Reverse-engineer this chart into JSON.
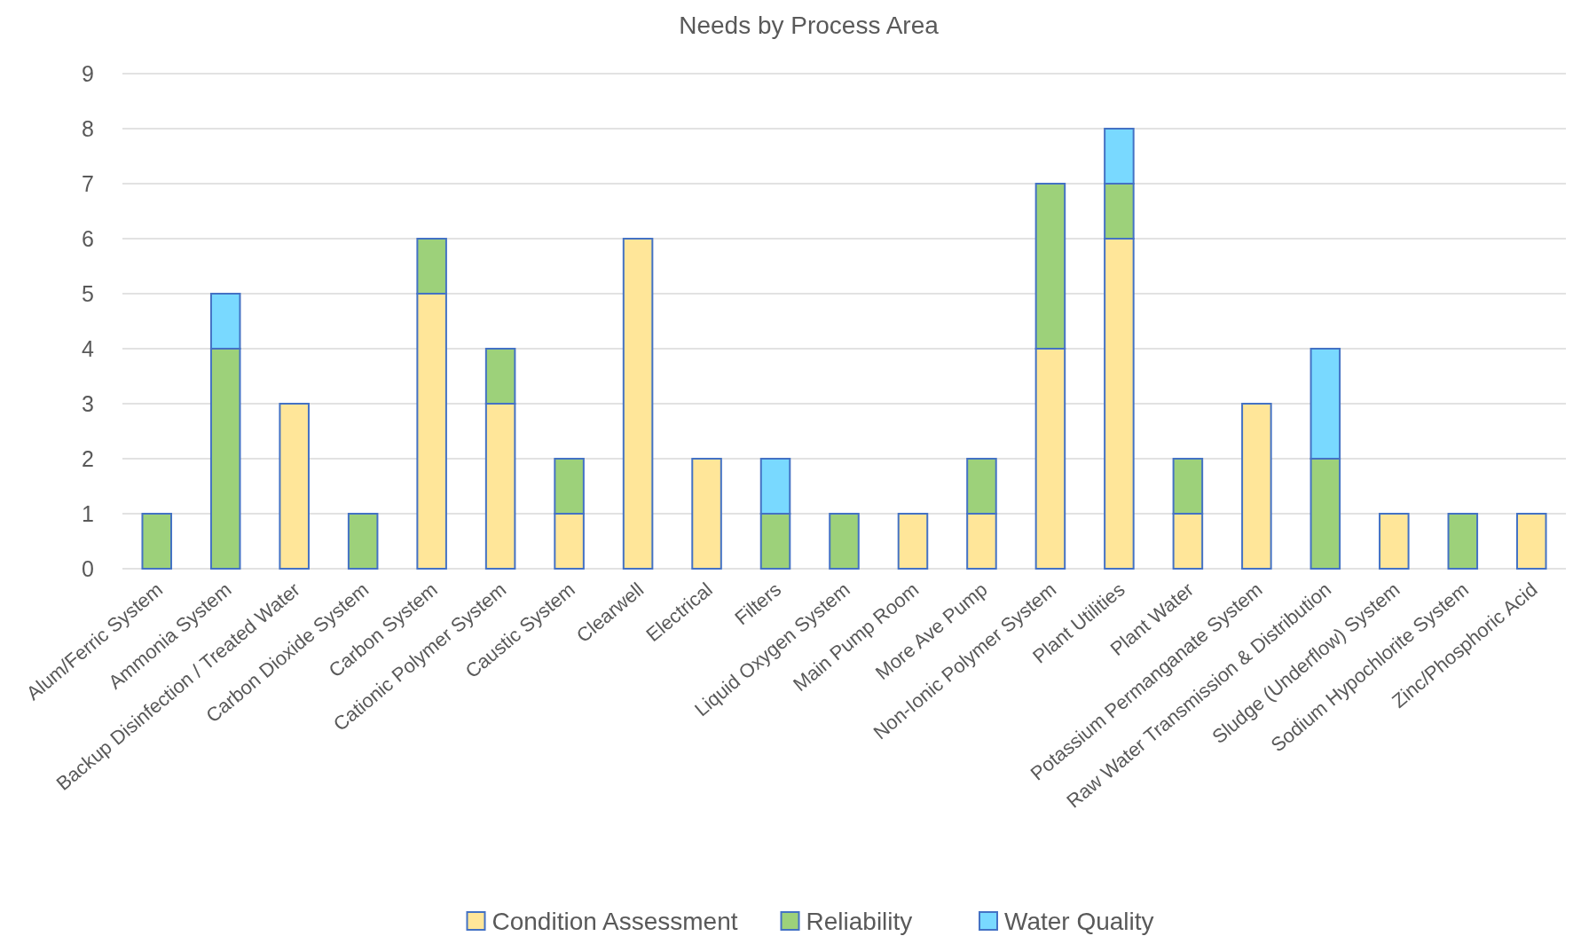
{
  "chart_data": {
    "type": "bar",
    "title": "Needs by Process Area",
    "stacked": true,
    "categories": [
      "Alum/Ferric System",
      "Ammonia System",
      "Backup Disinfection / Treated Water",
      "Carbon Dioxide System",
      "Carbon System",
      "Cationic Polymer System",
      "Caustic System",
      "Clearwell",
      "Electrical",
      "Filters",
      "Liquid Oxygen System",
      "Main Pump Room",
      "More Ave Pump",
      "Non-Ionic Polymer System",
      "Plant Utilities",
      "Plant Water",
      "Potassium Permanganate System",
      "Raw Water Transmission & Distribution",
      "Sludge (Underflow) System",
      "Sodium Hypochlorite System",
      "Zinc/Phosphoric Acid"
    ],
    "series": [
      {
        "name": "Condition Assessment",
        "color": "#ffe699",
        "values": [
          0,
          0,
          3,
          0,
          5,
          3,
          1,
          6,
          2,
          0,
          0,
          1,
          1,
          4,
          6,
          1,
          3,
          0,
          1,
          0,
          1
        ]
      },
      {
        "name": "Reliability",
        "color": "#9dd17a",
        "values": [
          1,
          4,
          0,
          1,
          1,
          1,
          1,
          0,
          0,
          1,
          1,
          0,
          1,
          3,
          1,
          1,
          0,
          2,
          0,
          1,
          0
        ]
      },
      {
        "name": "Water Quality",
        "color": "#79d9ff",
        "values": [
          0,
          1,
          0,
          0,
          0,
          0,
          0,
          0,
          0,
          1,
          0,
          0,
          0,
          0,
          1,
          0,
          0,
          2,
          0,
          0,
          0
        ]
      }
    ],
    "ylim": [
      0,
      9
    ],
    "yticks": [
      0,
      1,
      2,
      3,
      4,
      5,
      6,
      7,
      8,
      9
    ],
    "grid": "y",
    "legend": "bottom"
  }
}
